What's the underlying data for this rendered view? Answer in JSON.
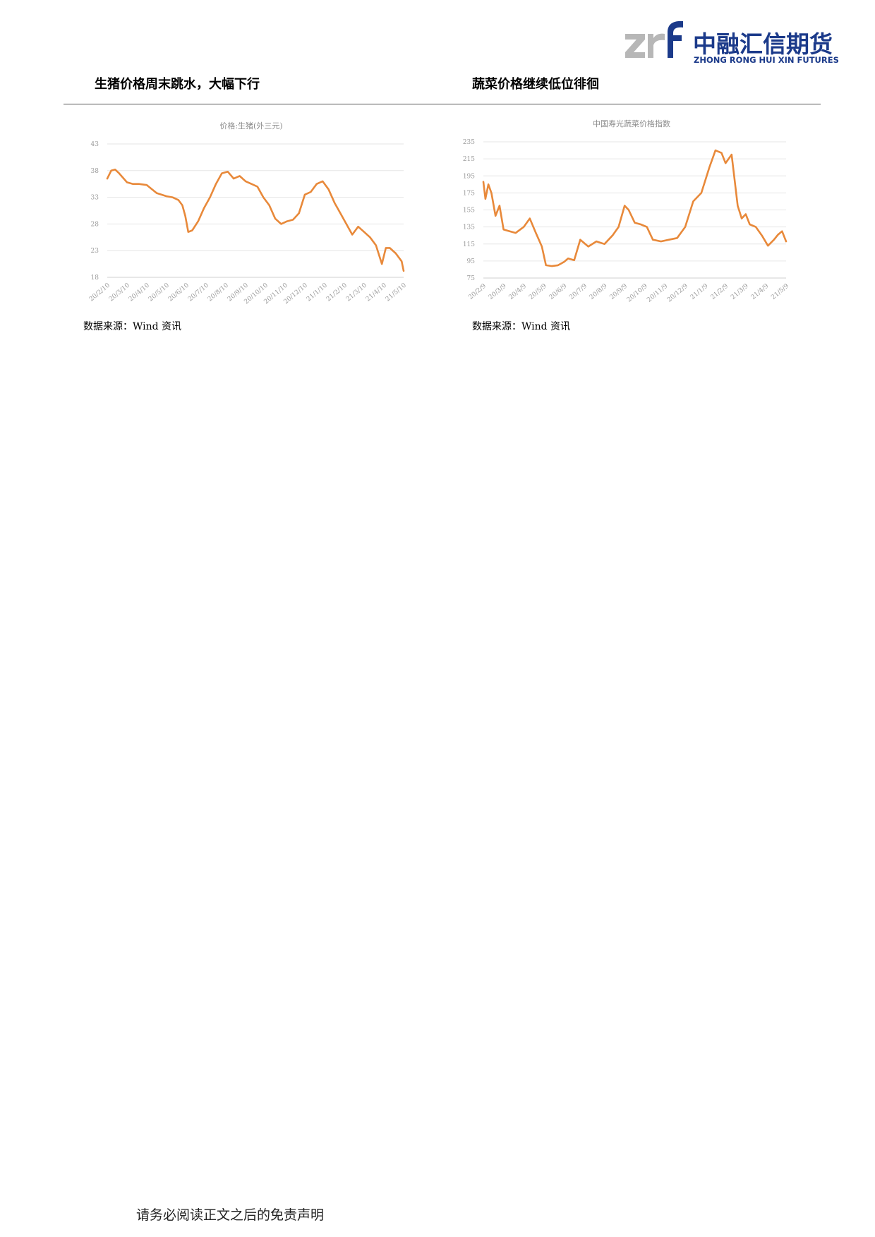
{
  "logo": {
    "mark": "zrf",
    "name_cn": "中融汇信期货",
    "name_en": "ZHONG RONG HUI XIN FUTURES",
    "gray": "#b7b7b7",
    "blue": "#1b3a8a"
  },
  "sections": [
    {
      "title": "生猪价格周末跳水，大幅下行",
      "source": "数据来源：Wind 资讯"
    },
    {
      "title": "蔬菜价格继续低位徘徊",
      "source": "数据来源：Wind 资讯"
    }
  ],
  "footer": "请务必阅读正文之后的免责声明",
  "chart_data": [
    {
      "type": "line",
      "title": "价格:生猪(外三元)",
      "color": "#e8893a",
      "ylim": [
        18,
        43
      ],
      "yticks": [
        "43",
        "38",
        "33",
        "28",
        "23",
        "18"
      ],
      "x_labels": [
        "20/2/10",
        "20/3/10",
        "20/4/10",
        "20/5/10",
        "20/6/10",
        "20/7/10",
        "20/8/10",
        "20/9/10",
        "20/10/10",
        "20/11/10",
        "20/12/10",
        "21/1/10",
        "21/2/10",
        "21/3/10",
        "21/4/10",
        "21/5/10"
      ],
      "x_points": [
        0,
        0.2,
        0.4,
        0.6,
        1.0,
        1.3,
        1.6,
        2.0,
        2.5,
        3.0,
        3.3,
        3.6,
        3.8,
        3.95,
        4.1,
        4.3,
        4.6,
        4.9,
        5.2,
        5.5,
        5.8,
        6.1,
        6.4,
        6.7,
        7.0,
        7.3,
        7.6,
        7.9,
        8.2,
        8.5,
        8.8,
        9.1,
        9.4,
        9.7,
        10.0,
        10.3,
        10.6,
        10.9,
        11.2,
        11.5,
        11.8,
        12.1,
        12.4,
        12.7,
        13.0,
        13.3,
        13.6,
        13.9,
        14.1,
        14.3,
        14.6,
        14.9,
        15.0
      ],
      "values": [
        36.5,
        38,
        38.2,
        37.5,
        35.8,
        35.5,
        35.5,
        35.3,
        33.8,
        33.2,
        33,
        32.5,
        31.5,
        29.5,
        26.5,
        26.8,
        28.5,
        31,
        33,
        35.5,
        37.5,
        37.8,
        36.5,
        37,
        36,
        35.5,
        35,
        33,
        31.5,
        29,
        28,
        28.5,
        28.8,
        30,
        33.5,
        34,
        35.5,
        36,
        34.5,
        32,
        30,
        28,
        26,
        27.5,
        26.5,
        25.5,
        24,
        20.5,
        23.5,
        23.5,
        22.5,
        21,
        19.2
      ]
    },
    {
      "type": "line",
      "title": "中国寿光蔬菜价格指数",
      "color": "#e8893a",
      "ylim": [
        75,
        235
      ],
      "yticks": [
        "235",
        "215",
        "195",
        "175",
        "155",
        "135",
        "115",
        "95",
        "75"
      ],
      "x_labels": [
        "20/2/9",
        "20/3/9",
        "20/4/9",
        "20/5/9",
        "20/6/9",
        "20/7/9",
        "20/8/9",
        "20/9/9",
        "20/10/9",
        "20/11/9",
        "20/12/9",
        "21/1/9",
        "21/2/9",
        "21/3/9",
        "21/4/9",
        "21/5/9"
      ],
      "x_points": [
        0,
        0.1,
        0.25,
        0.4,
        0.6,
        0.8,
        1.0,
        1.3,
        1.6,
        2.0,
        2.3,
        2.6,
        2.9,
        3.1,
        3.4,
        3.7,
        4.0,
        4.2,
        4.5,
        4.8,
        5.2,
        5.6,
        6.0,
        6.4,
        6.7,
        7.0,
        7.2,
        7.5,
        7.8,
        8.1,
        8.4,
        8.8,
        9.2,
        9.6,
        10.0,
        10.4,
        10.8,
        11.2,
        11.5,
        11.8,
        12.0,
        12.3,
        12.6,
        12.8,
        13.0,
        13.2,
        13.5,
        13.8,
        14.1,
        14.4,
        14.6,
        14.8,
        15.0
      ],
      "values": [
        188,
        168,
        185,
        175,
        148,
        160,
        132,
        130,
        128,
        135,
        145,
        128,
        112,
        90,
        89,
        90,
        94,
        98,
        96,
        120,
        112,
        118,
        115,
        125,
        135,
        160,
        155,
        140,
        138,
        135,
        120,
        118,
        120,
        122,
        135,
        165,
        175,
        205,
        225,
        222,
        210,
        220,
        160,
        145,
        150,
        138,
        135,
        125,
        113,
        120,
        126,
        130,
        118
      ]
    }
  ]
}
